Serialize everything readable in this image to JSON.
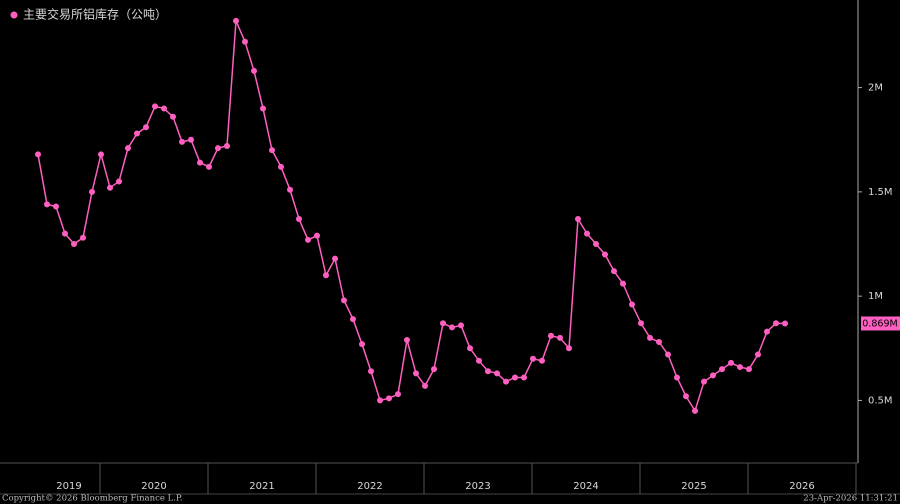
{
  "chart_data": {
    "type": "line",
    "title": "主要交易所铝库存（公吨）",
    "xtick_labels": [
      "2019",
      "2020",
      "2021",
      "2022",
      "2023",
      "2024",
      "2025",
      "2026"
    ],
    "series": [
      {
        "name": "主要交易所铝库存（公吨）",
        "color": "#ff5fc0",
        "values": [
          1680000,
          1440000,
          1430000,
          1300000,
          1250000,
          1280000,
          1500000,
          1680000,
          1520000,
          1550000,
          1710000,
          1780000,
          1810000,
          1910000,
          1900000,
          1860000,
          1740000,
          1750000,
          1640000,
          1620000,
          1710000,
          1720000,
          2320000,
          2220000,
          2080000,
          1900000,
          1700000,
          1620000,
          1510000,
          1370000,
          1270000,
          1290000,
          1100000,
          1180000,
          980000,
          890000,
          770000,
          640000,
          500000,
          510000,
          530000,
          790000,
          630000,
          570000,
          650000,
          870000,
          850000,
          860000,
          750000,
          690000,
          640000,
          630000,
          590000,
          610000,
          610000,
          700000,
          690000,
          810000,
          800000,
          750000,
          1370000,
          1300000,
          1250000,
          1200000,
          1120000,
          1060000,
          960000,
          870000,
          800000,
          780000,
          720000,
          610000,
          520000,
          450000,
          590000,
          620000,
          650000,
          680000,
          660000,
          650000,
          720000,
          830000,
          870000,
          869000
        ],
        "last_value_label": "0.869M"
      }
    ],
    "ylim": [
      200000,
      2420000
    ],
    "yticks": [
      {
        "value": 500000,
        "label": "0.5M"
      },
      {
        "value": 1000000,
        "label": "1M"
      },
      {
        "value": 1500000,
        "label": "1.5M"
      },
      {
        "value": 2000000,
        "label": "2M"
      }
    ],
    "footer_left": "Copyright© 2026 Bloomberg Finance L.P.",
    "footer_right": "23-Apr-2026 11:31:21"
  }
}
